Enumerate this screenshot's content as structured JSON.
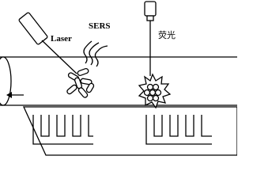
{
  "labels": {
    "laser": "Laser",
    "sers": "SERS",
    "fluorescence": "荧光"
  }
}
